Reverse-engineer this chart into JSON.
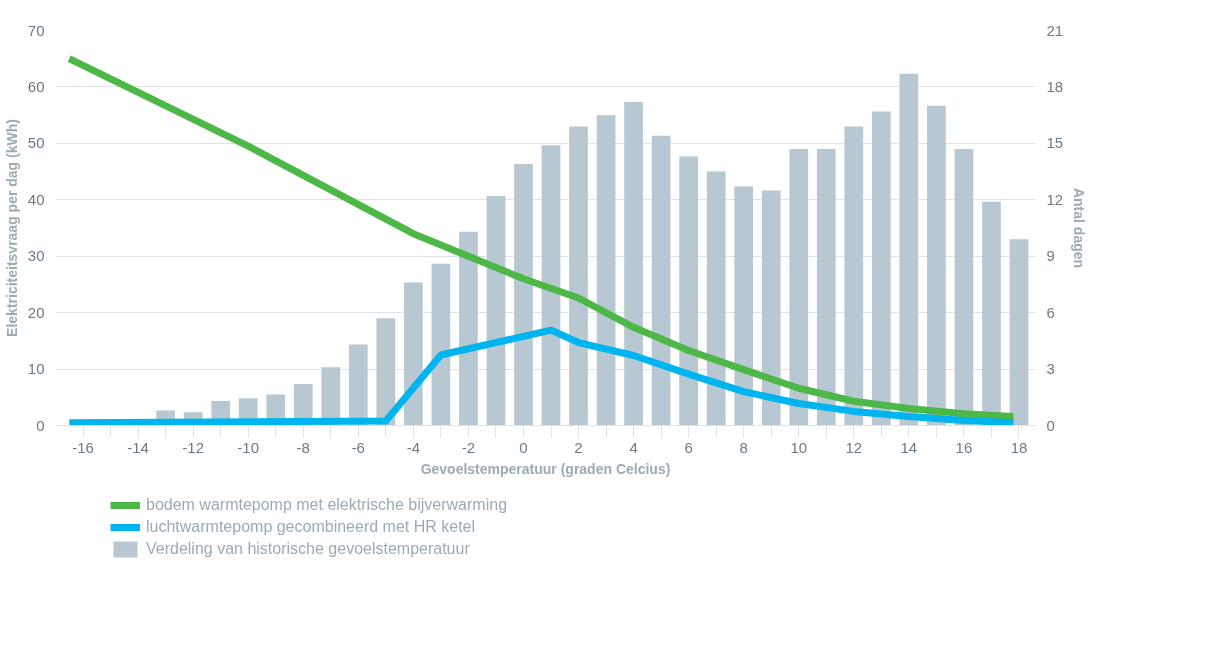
{
  "chart_data": {
    "type": "line",
    "xlabel": "Gevoelstemperatuur (graden Celcius)",
    "ylabel": "Elektriciteitsvraag per dag (kWh)",
    "y2label": "Antal dagen",
    "xlim": [
      -17,
      18.6
    ],
    "xticks": [
      -16,
      {
        "value": -15,
        "label": null
      },
      -14,
      {
        "value": -13,
        "label": null
      },
      -12,
      {
        "value": -11,
        "label": null
      },
      -10,
      {
        "value": -9,
        "label": null
      },
      -8,
      {
        "value": -7,
        "label": null
      },
      -6,
      {
        "value": -5,
        "label": null
      },
      -4,
      {
        "value": -3,
        "label": null
      },
      -2,
      {
        "value": -1,
        "label": null
      },
      0,
      {
        "value": 1,
        "label": null
      },
      2,
      {
        "value": 3,
        "label": null
      },
      4,
      {
        "value": 5,
        "label": null
      },
      6,
      {
        "value": 7,
        "label": null
      },
      8,
      {
        "value": 9,
        "label": null
      },
      10,
      {
        "value": 11,
        "label": null
      },
      12,
      {
        "value": 13,
        "label": null
      },
      14,
      {
        "value": 15,
        "label": null
      },
      16,
      {
        "value": 17,
        "label": null
      },
      18
    ],
    "ylim": [
      0,
      70
    ],
    "yticks": [
      0,
      10,
      20,
      30,
      40,
      50,
      60,
      70
    ],
    "y2lim": [
      0,
      21
    ],
    "y2ticks": [
      0,
      3,
      6,
      9,
      12,
      15,
      18,
      21
    ],
    "grid": "y",
    "legend": "bottom",
    "series": [
      {
        "name": "Verdeling van historische gevoelstemperatuur",
        "type": "bar",
        "axis": "y2",
        "color": "#b8c8d2",
        "x": [
          -13,
          -12,
          -11,
          -10,
          -9,
          -8,
          -7,
          -6,
          -5,
          -4,
          -3,
          -2,
          -1,
          0,
          1,
          2,
          3,
          4,
          5,
          6,
          7,
          8,
          9,
          10,
          11,
          12,
          13,
          14,
          15,
          16,
          17,
          18
        ],
        "values": [
          0.8,
          0.7,
          1.3,
          1.45,
          1.65,
          2.2,
          3.1,
          4.3,
          5.7,
          7.6,
          8.6,
          10.3,
          12.2,
          13.9,
          14.9,
          15.9,
          16.5,
          17.2,
          15.4,
          14.3,
          13.5,
          12.7,
          12.5,
          14.7,
          14.7,
          15.9,
          16.7,
          18.7,
          17.0,
          14.7,
          11.9,
          9.9
        ]
      },
      {
        "name": "bodem warmtepomp met elektrische bijverwarming",
        "color": "#4db848",
        "x": [
          -16.5,
          -10,
          -4,
          -2,
          0,
          2,
          4,
          6,
          8,
          10,
          12,
          14,
          16,
          17.8
        ],
        "values": [
          65,
          49.5,
          34,
          30,
          26,
          22.6,
          17.4,
          13.3,
          9.9,
          6.6,
          4.3,
          3.0,
          2.1,
          1.6
        ]
      },
      {
        "name": "luchtwarmtepomp gecombineerd met HR ketel",
        "color": "#00b5ef",
        "x": [
          -16.5,
          -5,
          -3,
          1,
          2,
          4,
          6,
          8,
          10,
          12,
          14,
          16,
          17.8
        ],
        "values": [
          0.5,
          0.8,
          12.5,
          16.9,
          14.7,
          12.4,
          9.1,
          6.0,
          3.9,
          2.5,
          1.6,
          0.9,
          0.5
        ]
      }
    ]
  }
}
